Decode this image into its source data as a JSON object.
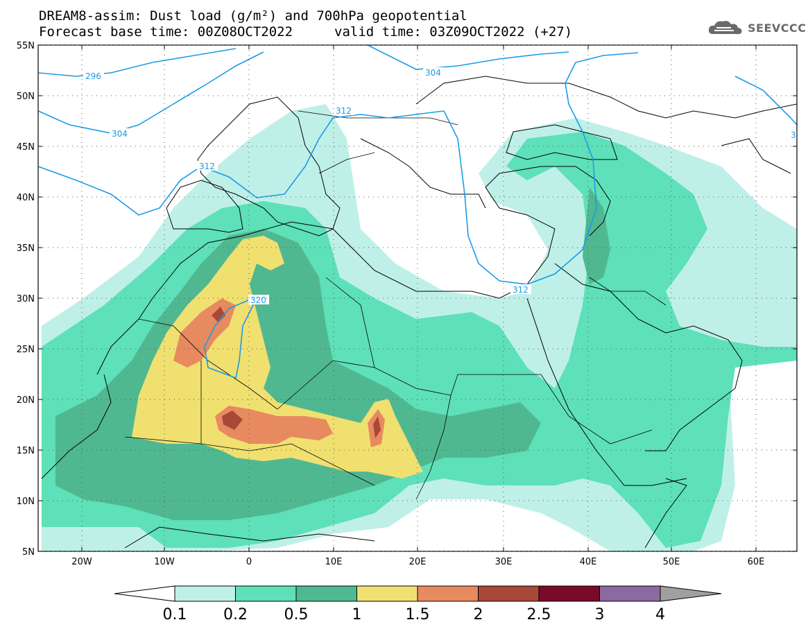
{
  "header": {
    "title_line1": "DREAM8-assim: Dust load (g/m²) and 700hPa geopotential",
    "title_line2": "Forecast base time: 00Z08OCT2022",
    "valid_time": "valid time: 03Z09OCT2022 (+27)"
  },
  "logo": {
    "text": "SEEVCCC",
    "icon": "cloud-logo-icon"
  },
  "map": {
    "lon_ticks": [
      "20W",
      "10W",
      "0",
      "10E",
      "20E",
      "30E",
      "40E",
      "50E",
      "60E"
    ],
    "lat_ticks": [
      "55N",
      "50N",
      "45N",
      "40N",
      "35N",
      "30N",
      "25N",
      "20N",
      "15N",
      "10N",
      "5N"
    ],
    "contour_labels": [
      "296",
      "304",
      "304",
      "312",
      "312",
      "312",
      "320",
      "3"
    ],
    "contour_color": "#1a9be6"
  },
  "colorbar": {
    "labels": [
      "0.1",
      "0.2",
      "0.5",
      "1",
      "1.5",
      "2",
      "2.5",
      "3",
      "4"
    ],
    "colors": [
      "#bff0e8",
      "#5ee0b8",
      "#50b890",
      "#f0e070",
      "#e88a60",
      "#a84838",
      "#7a0a2a",
      "#8a6aa0",
      "#a0a0a0"
    ]
  }
}
